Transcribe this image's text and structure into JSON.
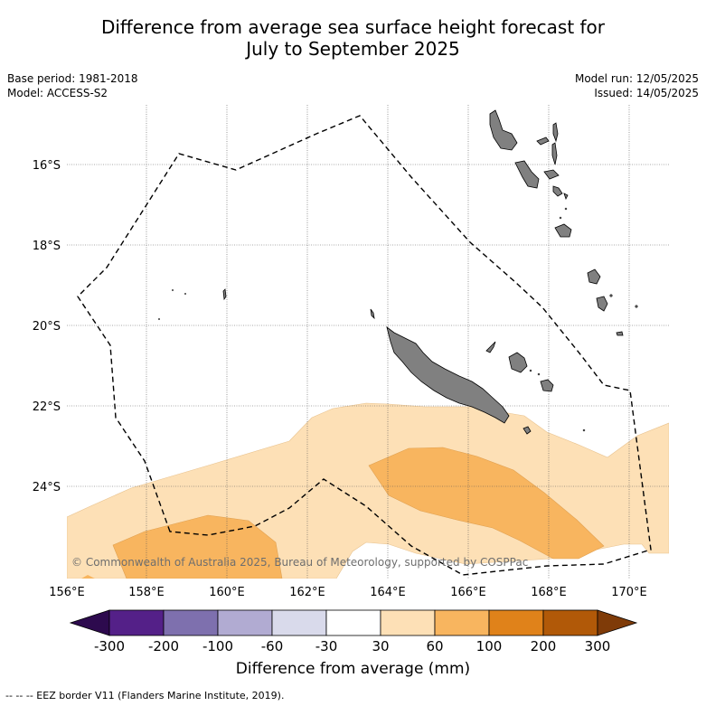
{
  "title_line1": "Difference from average sea surface height forecast for",
  "title_line2": "July to September 2025",
  "meta_left": {
    "base_period": "Base period: 1981-2018",
    "model": "Model: ACCESS-S2"
  },
  "meta_right": {
    "model_run": "Model run: 12/05/2025",
    "issued": "Issued: 14/05/2025"
  },
  "lat_labels": [
    "16°S",
    "18°S",
    "20°S",
    "22°S",
    "24°S"
  ],
  "lon_labels": [
    "156°E",
    "158°E",
    "160°E",
    "162°E",
    "164°E",
    "166°E",
    "168°E",
    "170°E"
  ],
  "copyright": "© Commonwealth of Australia 2025, Bureau of Meteorology, supported by COSPPac",
  "colorbar": {
    "tick_labels": [
      "-300",
      "-200",
      "-100",
      "-60",
      "-30",
      "30",
      "60",
      "100",
      "200",
      "300"
    ],
    "colors": [
      "#2d0a4e",
      "#542088",
      "#7e70ae",
      "#b1abd2",
      "#d9daeb",
      "#ffffff",
      "#fde0b6",
      "#f8b55f",
      "#e0821a",
      "#b15908",
      "#7f3b08"
    ],
    "label": "Difference from average (mm)"
  },
  "fill_colors": {
    "light_orange": "#fde0b6",
    "medium_orange": "#f8b55f",
    "land": "#808080"
  },
  "footnote": "-- -- -- EEZ border V11 (Flanders Marine Institute, 2019)."
}
